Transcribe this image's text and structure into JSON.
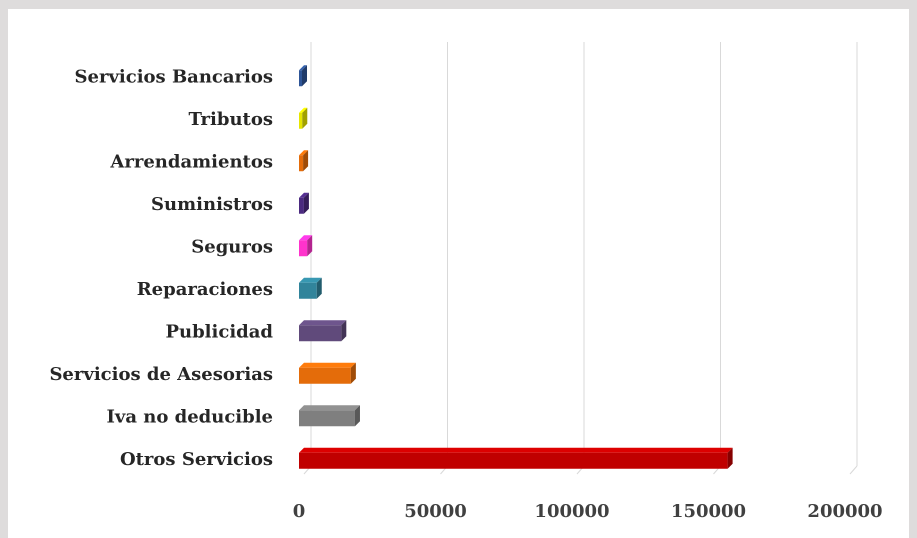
{
  "chart_data": {
    "type": "bar",
    "orientation": "horizontal",
    "style": "3d",
    "categories": [
      "Otros Servicios",
      "Iva no deducible",
      "Servicios de Asesorias",
      "Publicidad",
      "Reparaciones",
      "Seguros",
      "Suministros",
      "Arrendamientos",
      "Tributos",
      "Servicios Bancarios"
    ],
    "values": [
      157000,
      20500,
      19000,
      15500,
      6500,
      3000,
      1800,
      1500,
      1200,
      1100
    ],
    "colors": [
      "#c00000",
      "#7f7f7f",
      "#e46c0a",
      "#604a7b",
      "#31849b",
      "#ff33cc",
      "#4b2a80",
      "#e46c0a",
      "#e6e600",
      "#2e5597"
    ],
    "title": "",
    "xlabel": "",
    "ylabel": "",
    "xlim": [
      0,
      200000
    ],
    "xticks": [
      "0",
      "50000",
      "100000",
      "150000",
      "200000"
    ],
    "grid": true,
    "legend": "none"
  }
}
